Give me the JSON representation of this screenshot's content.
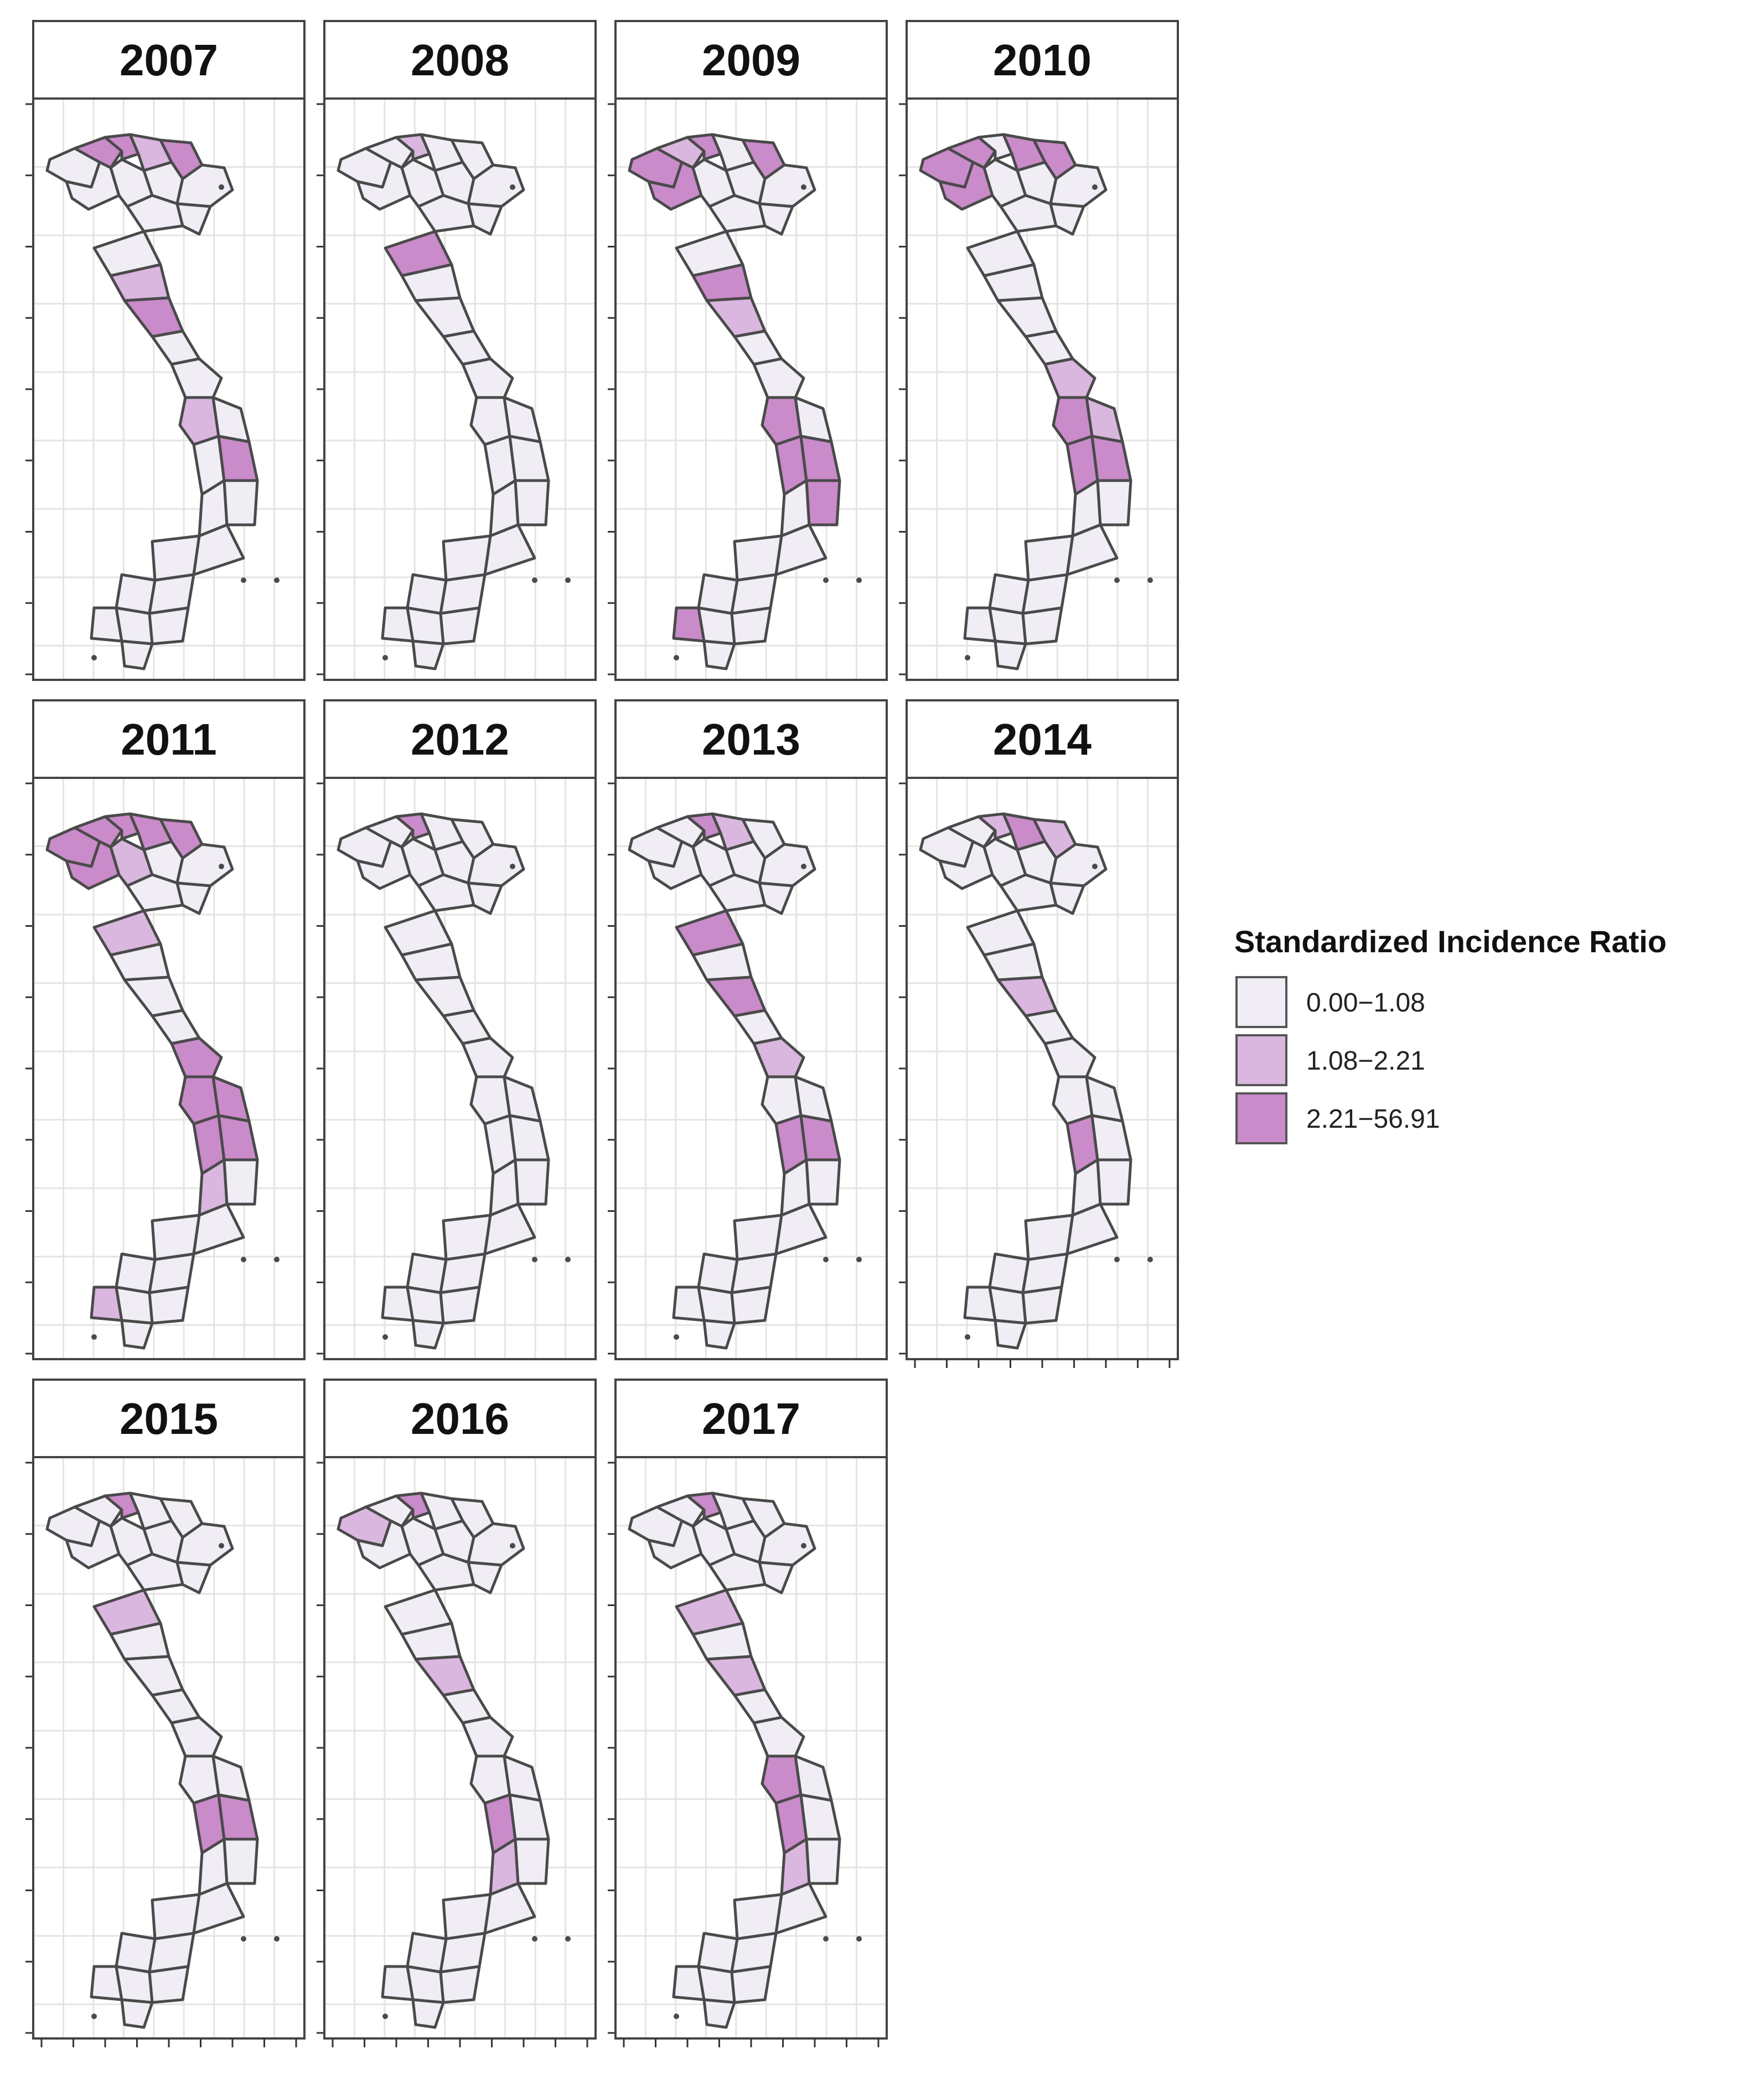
{
  "legend": {
    "title": "Standardized Incidence Ratio",
    "classes": [
      {
        "label": "0.00−1.08",
        "color": "#f0edf5"
      },
      {
        "label": "1.08−2.21",
        "color": "#dab7df"
      },
      {
        "label": "2.21−56.91",
        "color": "#c98bc9"
      }
    ]
  },
  "panels": [
    {
      "year": "2007",
      "class_by_region": [
        0,
        2,
        2,
        1,
        2,
        0,
        0,
        0,
        0,
        0,
        0,
        0,
        1,
        2,
        0,
        0,
        1,
        0,
        0,
        2,
        0,
        0,
        0,
        0,
        0,
        0,
        0,
        0,
        0,
        0
      ]
    },
    {
      "year": "2008",
      "class_by_region": [
        0,
        0,
        1,
        0,
        0,
        0,
        0,
        0,
        0,
        0,
        0,
        2,
        0,
        0,
        0,
        0,
        0,
        0,
        0,
        0,
        0,
        0,
        0,
        0,
        0,
        0,
        0,
        0,
        0,
        0
      ]
    },
    {
      "year": "2009",
      "class_by_region": [
        2,
        1,
        2,
        0,
        2,
        2,
        0,
        0,
        0,
        0,
        0,
        0,
        2,
        1,
        0,
        0,
        2,
        0,
        2,
        2,
        0,
        2,
        0,
        0,
        0,
        0,
        2,
        0,
        0,
        0
      ]
    },
    {
      "year": "2010",
      "class_by_region": [
        2,
        2,
        0,
        2,
        2,
        2,
        0,
        0,
        0,
        0,
        0,
        0,
        0,
        0,
        0,
        1,
        2,
        1,
        2,
        2,
        0,
        0,
        0,
        0,
        0,
        0,
        0,
        0,
        0,
        0
      ]
    },
    {
      "year": "2011",
      "class_by_region": [
        2,
        2,
        2,
        2,
        2,
        2,
        1,
        0,
        0,
        0,
        0,
        1,
        0,
        0,
        0,
        2,
        2,
        2,
        2,
        2,
        1,
        0,
        0,
        0,
        0,
        0,
        1,
        0,
        0,
        0
      ]
    },
    {
      "year": "2012",
      "class_by_region": [
        0,
        0,
        2,
        0,
        0,
        0,
        0,
        0,
        0,
        0,
        0,
        0,
        0,
        0,
        0,
        0,
        0,
        0,
        0,
        0,
        0,
        0,
        0,
        0,
        0,
        0,
        0,
        0,
        0,
        0
      ]
    },
    {
      "year": "2013",
      "class_by_region": [
        0,
        0,
        2,
        1,
        0,
        0,
        0,
        0,
        0,
        0,
        0,
        2,
        0,
        2,
        0,
        1,
        0,
        0,
        2,
        2,
        0,
        0,
        0,
        0,
        0,
        0,
        0,
        0,
        0,
        0
      ]
    },
    {
      "year": "2014",
      "class_by_region": [
        0,
        0,
        1,
        2,
        1,
        0,
        0,
        0,
        0,
        0,
        0,
        0,
        0,
        1,
        0,
        0,
        0,
        0,
        2,
        0,
        0,
        0,
        0,
        0,
        0,
        0,
        0,
        0,
        0,
        0
      ]
    },
    {
      "year": "2015",
      "class_by_region": [
        0,
        0,
        2,
        0,
        0,
        0,
        0,
        0,
        0,
        0,
        0,
        1,
        0,
        0,
        0,
        0,
        0,
        0,
        2,
        2,
        0,
        0,
        0,
        0,
        0,
        0,
        0,
        0,
        0,
        0
      ]
    },
    {
      "year": "2016",
      "class_by_region": [
        1,
        0,
        2,
        0,
        0,
        0,
        0,
        0,
        0,
        0,
        0,
        0,
        0,
        1,
        0,
        0,
        0,
        0,
        2,
        0,
        1,
        0,
        0,
        0,
        0,
        0,
        0,
        0,
        0,
        0
      ]
    },
    {
      "year": "2017",
      "class_by_region": [
        0,
        0,
        2,
        0,
        0,
        0,
        0,
        0,
        0,
        0,
        0,
        1,
        0,
        1,
        0,
        0,
        2,
        0,
        2,
        0,
        1,
        0,
        0,
        0,
        0,
        0,
        0,
        0,
        0,
        0
      ]
    }
  ],
  "colors": {
    "panel_border": "#444444",
    "grid": "#e4e4e4",
    "region_stroke": "#4a4a4a",
    "strip_fill": "#ffffff"
  }
}
